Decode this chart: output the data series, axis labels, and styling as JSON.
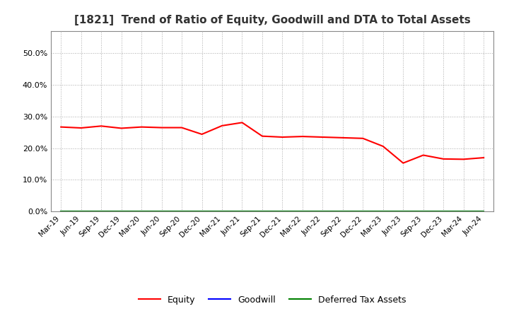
{
  "title": "[1821]  Trend of Ratio of Equity, Goodwill and DTA to Total Assets",
  "x_labels": [
    "Mar-19",
    "Jun-19",
    "Sep-19",
    "Dec-19",
    "Mar-20",
    "Jun-20",
    "Sep-20",
    "Dec-20",
    "Mar-21",
    "Jun-21",
    "Sep-21",
    "Dec-21",
    "Mar-22",
    "Jun-22",
    "Sep-22",
    "Dec-22",
    "Mar-23",
    "Jun-23",
    "Sep-23",
    "Dec-23",
    "Mar-24",
    "Jun-24"
  ],
  "equity": [
    0.267,
    0.264,
    0.27,
    0.263,
    0.267,
    0.265,
    0.265,
    0.244,
    0.271,
    0.281,
    0.238,
    0.235,
    0.237,
    0.235,
    0.233,
    0.231,
    0.206,
    0.153,
    0.178,
    0.166,
    0.165,
    0.17
  ],
  "goodwill": [
    0.0,
    0.0,
    0.0,
    0.0,
    0.0,
    0.0,
    0.0,
    0.0,
    0.0,
    0.0,
    0.0,
    0.0,
    0.0,
    0.0,
    0.0,
    0.0,
    0.0,
    0.0,
    0.0,
    0.0,
    0.0,
    0.0
  ],
  "dta": [
    0.0,
    0.0,
    0.0,
    0.0,
    0.0,
    0.0,
    0.0,
    0.0,
    0.0,
    0.0,
    0.0,
    0.0,
    0.0,
    0.0,
    0.0,
    0.0,
    0.0,
    0.0,
    0.0,
    0.0,
    0.0,
    0.0
  ],
  "equity_color": "#FF0000",
  "goodwill_color": "#0000FF",
  "dta_color": "#008000",
  "ylim": [
    0.0,
    0.57
  ],
  "yticks": [
    0.0,
    0.1,
    0.2,
    0.3,
    0.4,
    0.5
  ],
  "background_color": "#FFFFFF",
  "plot_bg_color": "#FFFFFF",
  "grid_color": "#AAAAAA",
  "title_fontsize": 11
}
